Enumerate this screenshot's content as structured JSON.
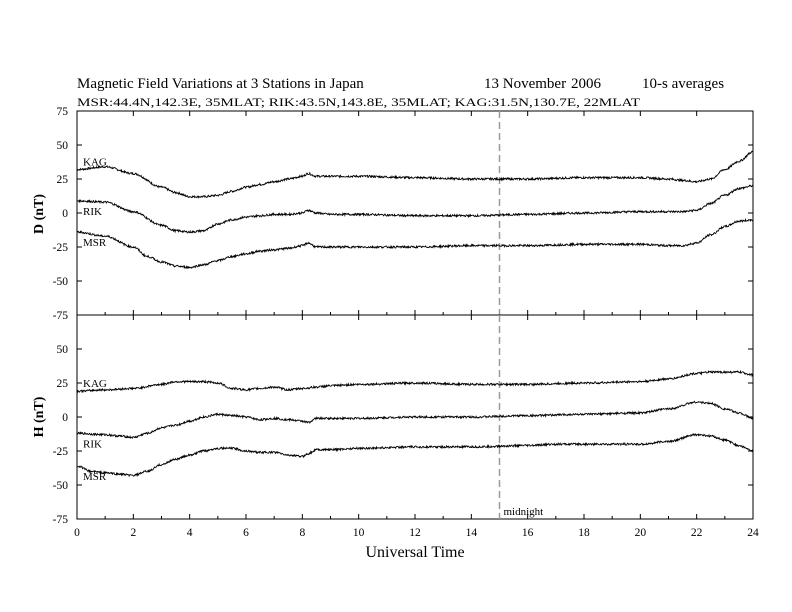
{
  "header": {
    "title": "Magnetic Field Variations at 3 Stations in Japan",
    "date_prefix": "13 November",
    "date_year": "2006",
    "averages": "10-s averages",
    "subtitle": "MSR:44.4N,142.3E, 35MLAT;  RIK:43.5N,143.8E, 35MLAT;  KAG:31.5N,130.7E, 22MLAT"
  },
  "chart_data": [
    {
      "type": "line",
      "panel": "top",
      "ylabel": "D (nT)",
      "xlim": [
        0,
        24
      ],
      "ylim": [
        -75,
        75
      ],
      "yticks": [
        -75,
        -50,
        -25,
        0,
        25,
        50,
        75
      ],
      "series": [
        {
          "name": "KAG",
          "x": [
            0,
            1,
            2,
            3,
            3.5,
            4,
            4.5,
            5,
            5.5,
            6,
            6.5,
            7,
            7.5,
            8,
            8.2,
            8.5,
            9,
            10,
            12,
            14,
            16,
            18,
            20,
            21,
            21.5,
            22,
            22.5,
            23,
            23.5,
            24
          ],
          "y": [
            32,
            34,
            29,
            19,
            15,
            12,
            12,
            13,
            16,
            19,
            21,
            23,
            25,
            27,
            29,
            27,
            27,
            27,
            26,
            25,
            25,
            26,
            26,
            25,
            24,
            23,
            25,
            32,
            38,
            45
          ]
        },
        {
          "name": "RIK",
          "x": [
            0,
            1,
            2,
            3,
            3.5,
            4,
            4.5,
            5,
            5.5,
            6,
            6.5,
            7,
            7.5,
            8,
            8.2,
            8.5,
            9,
            10,
            12,
            14,
            16,
            18,
            20,
            21,
            21.5,
            22,
            22.5,
            23,
            23.5,
            24
          ],
          "y": [
            9,
            8,
            1,
            -9,
            -13,
            -14,
            -13,
            -8,
            -5,
            -3,
            -2,
            -1,
            -1,
            0,
            2,
            0,
            -1,
            -1,
            -2,
            -2,
            -1,
            0,
            1,
            1,
            1,
            2,
            7,
            13,
            18,
            20
          ]
        },
        {
          "name": "MSR",
          "x": [
            0,
            1,
            2,
            2.5,
            3,
            3.5,
            4,
            4.5,
            5,
            5.5,
            6,
            6.5,
            7,
            7.5,
            8,
            8.2,
            8.5,
            9,
            10,
            12,
            14,
            16,
            18,
            20,
            21,
            21.5,
            22,
            22.5,
            23,
            23.5,
            24
          ],
          "y": [
            -14,
            -17,
            -25,
            -32,
            -36,
            -39,
            -40,
            -38,
            -35,
            -32,
            -30,
            -28,
            -27,
            -26,
            -24,
            -22,
            -25,
            -25,
            -25,
            -25,
            -24,
            -24,
            -23,
            -23,
            -24,
            -24,
            -22,
            -16,
            -10,
            -6,
            -5
          ]
        }
      ]
    },
    {
      "type": "line",
      "panel": "bottom",
      "ylabel": "H (nT)",
      "xlabel": "Universal Time",
      "xlim": [
        0,
        24
      ],
      "xticks": [
        0,
        2,
        4,
        6,
        8,
        10,
        12,
        14,
        16,
        18,
        20,
        22,
        24
      ],
      "ylim": [
        -75,
        75
      ],
      "yticks": [
        -75,
        -50,
        -25,
        0,
        25,
        50,
        75
      ],
      "series": [
        {
          "name": "KAG",
          "x": [
            0,
            1,
            2,
            3,
            3.5,
            4,
            4.5,
            5,
            5.5,
            6,
            6.5,
            7,
            7.5,
            8,
            8.5,
            9,
            10,
            12,
            14,
            16,
            18,
            20,
            21,
            22,
            22.5,
            23,
            23.5,
            24
          ],
          "y": [
            19,
            20,
            21,
            24,
            26,
            26,
            26,
            25,
            21,
            20,
            21,
            22,
            20,
            21,
            22,
            23,
            24,
            25,
            24,
            24,
            25,
            26,
            28,
            32,
            33,
            33,
            33,
            31
          ],
          "x_note": ""
        },
        {
          "name": "RIK",
          "x": [
            0,
            1,
            1.5,
            2,
            2.5,
            3,
            3.5,
            4,
            4.5,
            5,
            5.5,
            6,
            6.5,
            7,
            7.5,
            8,
            8.2,
            8.5,
            9,
            10,
            12,
            14,
            16,
            18,
            20,
            21,
            22,
            22.5,
            23,
            23.5,
            24
          ],
          "y": [
            -12,
            -13,
            -14,
            -15,
            -12,
            -8,
            -6,
            -3,
            0,
            2,
            1,
            0,
            -2,
            -1,
            -2,
            -3,
            -4,
            -1,
            -1,
            -1,
            0,
            0,
            1,
            2,
            3,
            6,
            11,
            10,
            6,
            3,
            -1
          ]
        },
        {
          "name": "MSR",
          "x": [
            0,
            0.5,
            1,
            1.5,
            2,
            2.5,
            3,
            3.5,
            4,
            4.5,
            5,
            5.5,
            6,
            6.5,
            7,
            7.5,
            8,
            8.2,
            8.5,
            9,
            10,
            12,
            14,
            16,
            17,
            18,
            20,
            21,
            22,
            22.5,
            23,
            23.5,
            24
          ],
          "y": [
            -36,
            -40,
            -41,
            -42,
            -43,
            -40,
            -35,
            -31,
            -28,
            -25,
            -23,
            -23,
            -25,
            -26,
            -26,
            -28,
            -29,
            -27,
            -24,
            -24,
            -23,
            -22,
            -22,
            -21,
            -20,
            -20,
            -20,
            -18,
            -13,
            -14,
            -17,
            -21,
            -25
          ]
        }
      ]
    }
  ],
  "annotations": {
    "marker_x": 15,
    "marker_label": "midnight"
  },
  "colors": {
    "line": "#000000",
    "marker": "#999999",
    "background": "#ffffff"
  }
}
